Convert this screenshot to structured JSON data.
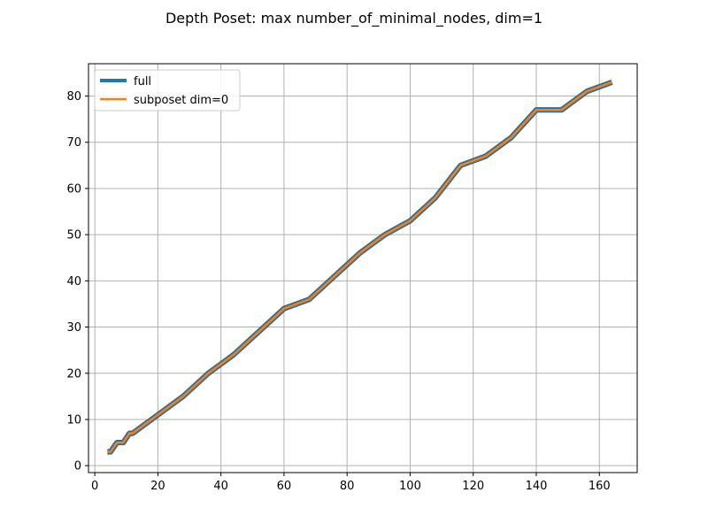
{
  "chart_data": {
    "type": "line",
    "title": "Depth Poset: max number_of_minimal_nodes, dim=1",
    "xlabel": "",
    "ylabel": "",
    "xlim": [
      -2,
      172
    ],
    "ylim": [
      -1.5,
      87
    ],
    "xticks": [
      0,
      20,
      40,
      60,
      80,
      100,
      120,
      140,
      160
    ],
    "yticks": [
      0,
      10,
      20,
      30,
      40,
      50,
      60,
      70,
      80
    ],
    "grid": true,
    "legend_position": "top-left",
    "x": [
      4,
      5,
      7,
      8,
      9,
      11,
      12,
      20,
      28,
      36,
      44,
      52,
      60,
      68,
      76,
      84,
      92,
      100,
      108,
      116,
      124,
      132,
      140,
      148,
      156,
      164
    ],
    "series": [
      {
        "name": "full",
        "color": "#1f77b4",
        "values": [
          3,
          3,
          5,
          5,
          5,
          7,
          7,
          11,
          15,
          20,
          24,
          29,
          34,
          36,
          41,
          46,
          50,
          53,
          58,
          65,
          67,
          71,
          77,
          77,
          81,
          83
        ]
      },
      {
        "name": "subposet dim=0",
        "color": "#ff7f0e",
        "values": [
          3,
          3,
          5,
          5,
          5,
          7,
          7,
          11,
          15,
          20,
          24,
          29,
          34,
          36,
          41,
          46,
          50,
          53,
          58,
          65,
          67,
          71,
          77,
          77,
          81,
          83
        ]
      }
    ]
  }
}
